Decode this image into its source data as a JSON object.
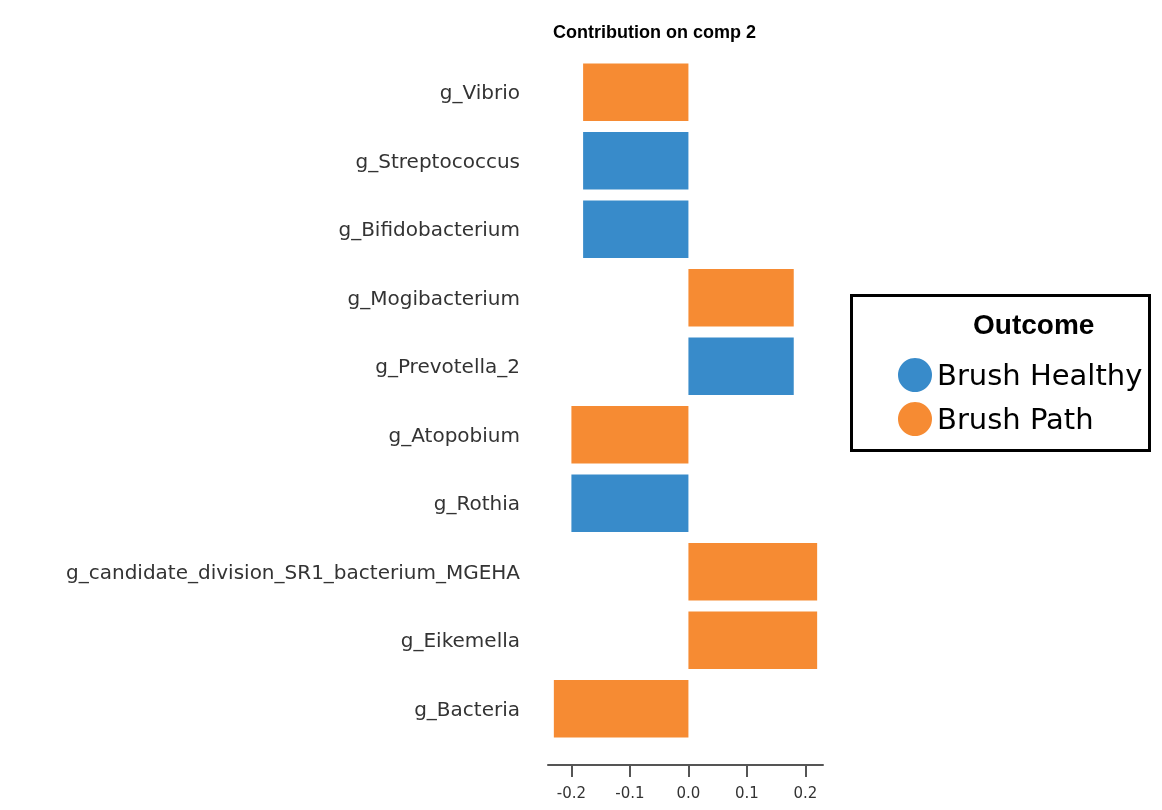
{
  "chart_data": {
    "type": "bar",
    "orientation": "horizontal",
    "stacked": true,
    "title": "Contribution on comp 2",
    "legend_title": "Outcome",
    "legend": "right",
    "categories": [
      "g_Vibrio",
      "g_Streptococcus",
      "g_Bifidobacterium",
      "g_Mogibacterium",
      "g_Prevotella_2",
      "g_Atopobium",
      "g_Rothia",
      "g_candidate_division_SR1_bacterium_MGEHA",
      "g_Eikemella",
      "g_Bacteria"
    ],
    "series": [
      {
        "name": "Brush Healthy",
        "color": "#388bca",
        "values": [
          null,
          -0.18,
          -0.18,
          null,
          0.18,
          null,
          -0.2,
          null,
          null,
          null
        ]
      },
      {
        "name": "Brush Path",
        "color": "#f68b33",
        "values": [
          -0.18,
          null,
          null,
          0.18,
          null,
          -0.2,
          null,
          0.22,
          0.22,
          -0.23
        ]
      }
    ],
    "xlim": [
      -0.24,
      0.23
    ],
    "xticks": [
      -0.2,
      -0.1,
      {
        "value": 0,
        "label": "0.0"
      },
      0.1,
      0.2
    ],
    "grid": false
  }
}
